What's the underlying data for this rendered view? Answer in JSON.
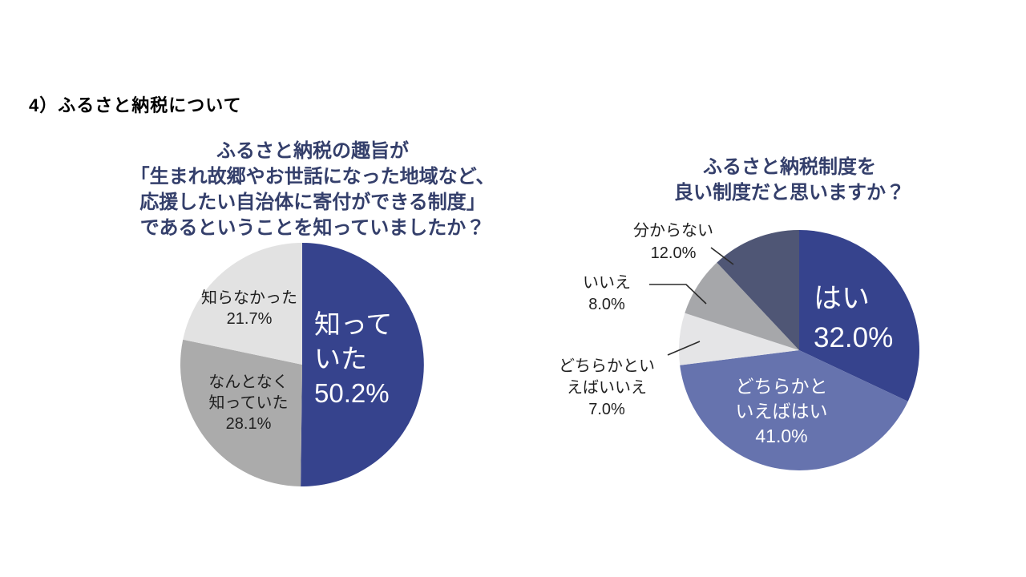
{
  "page": {
    "heading": "4）ふるさと納税について"
  },
  "chart_data": [
    {
      "type": "pie",
      "title": "ふるさと納税の趣旨が「生まれ故郷やお世話になった地域など、応援したい自治体に寄付ができる制度」であるということを知っていましたか？",
      "title_lines": [
        "ふるさと納税の趣旨が",
        "「生まれ故郷やお世話になった地域など、",
        "応援したい自治体に寄付ができる制度」",
        "であるということを知っていましたか？"
      ],
      "title_color": "#343F6B",
      "categories": [
        "知っていた",
        "なんとなく知っていた",
        "知らなかった"
      ],
      "values": [
        50.2,
        28.1,
        21.7
      ],
      "colors": [
        "#36438D",
        "#ABABAB",
        "#E2E2E2"
      ],
      "start_angle": "12-oclock",
      "direction": "clockwise",
      "legend": "none",
      "slice_label_lines": [
        [
          "知って",
          "いた",
          "50.2%"
        ],
        [
          "なんとなく",
          "知っていた",
          "28.1%"
        ],
        [
          "知らなかった",
          "21.7%"
        ]
      ]
    },
    {
      "type": "pie",
      "title": "ふるさと納税制度を良い制度だと思いますか？",
      "title_lines": [
        "ふるさと納税制度を",
        "良い制度だと思いますか？"
      ],
      "title_color": "#343F6B",
      "categories": [
        "はい",
        "どちらかといえばはい",
        "どちらかといえばいいえ",
        "いいえ",
        "分からない"
      ],
      "values": [
        32.0,
        41.0,
        7.0,
        8.0,
        12.0
      ],
      "colors": [
        "#36438D",
        "#6673AE",
        "#E5E5E7",
        "#A6A7AA",
        "#4F5675"
      ],
      "start_angle": "12-oclock",
      "direction": "clockwise",
      "legend": "none",
      "slice_label_lines": [
        [
          "はい",
          "32.0%"
        ],
        [
          "どちらかと",
          "いえばはい",
          "41.0%"
        ],
        [
          "どちらかとい",
          "えばいいえ",
          "7.0%"
        ],
        [
          "いいえ",
          "8.0%"
        ],
        [
          "分からない",
          "12.0%"
        ]
      ]
    }
  ]
}
